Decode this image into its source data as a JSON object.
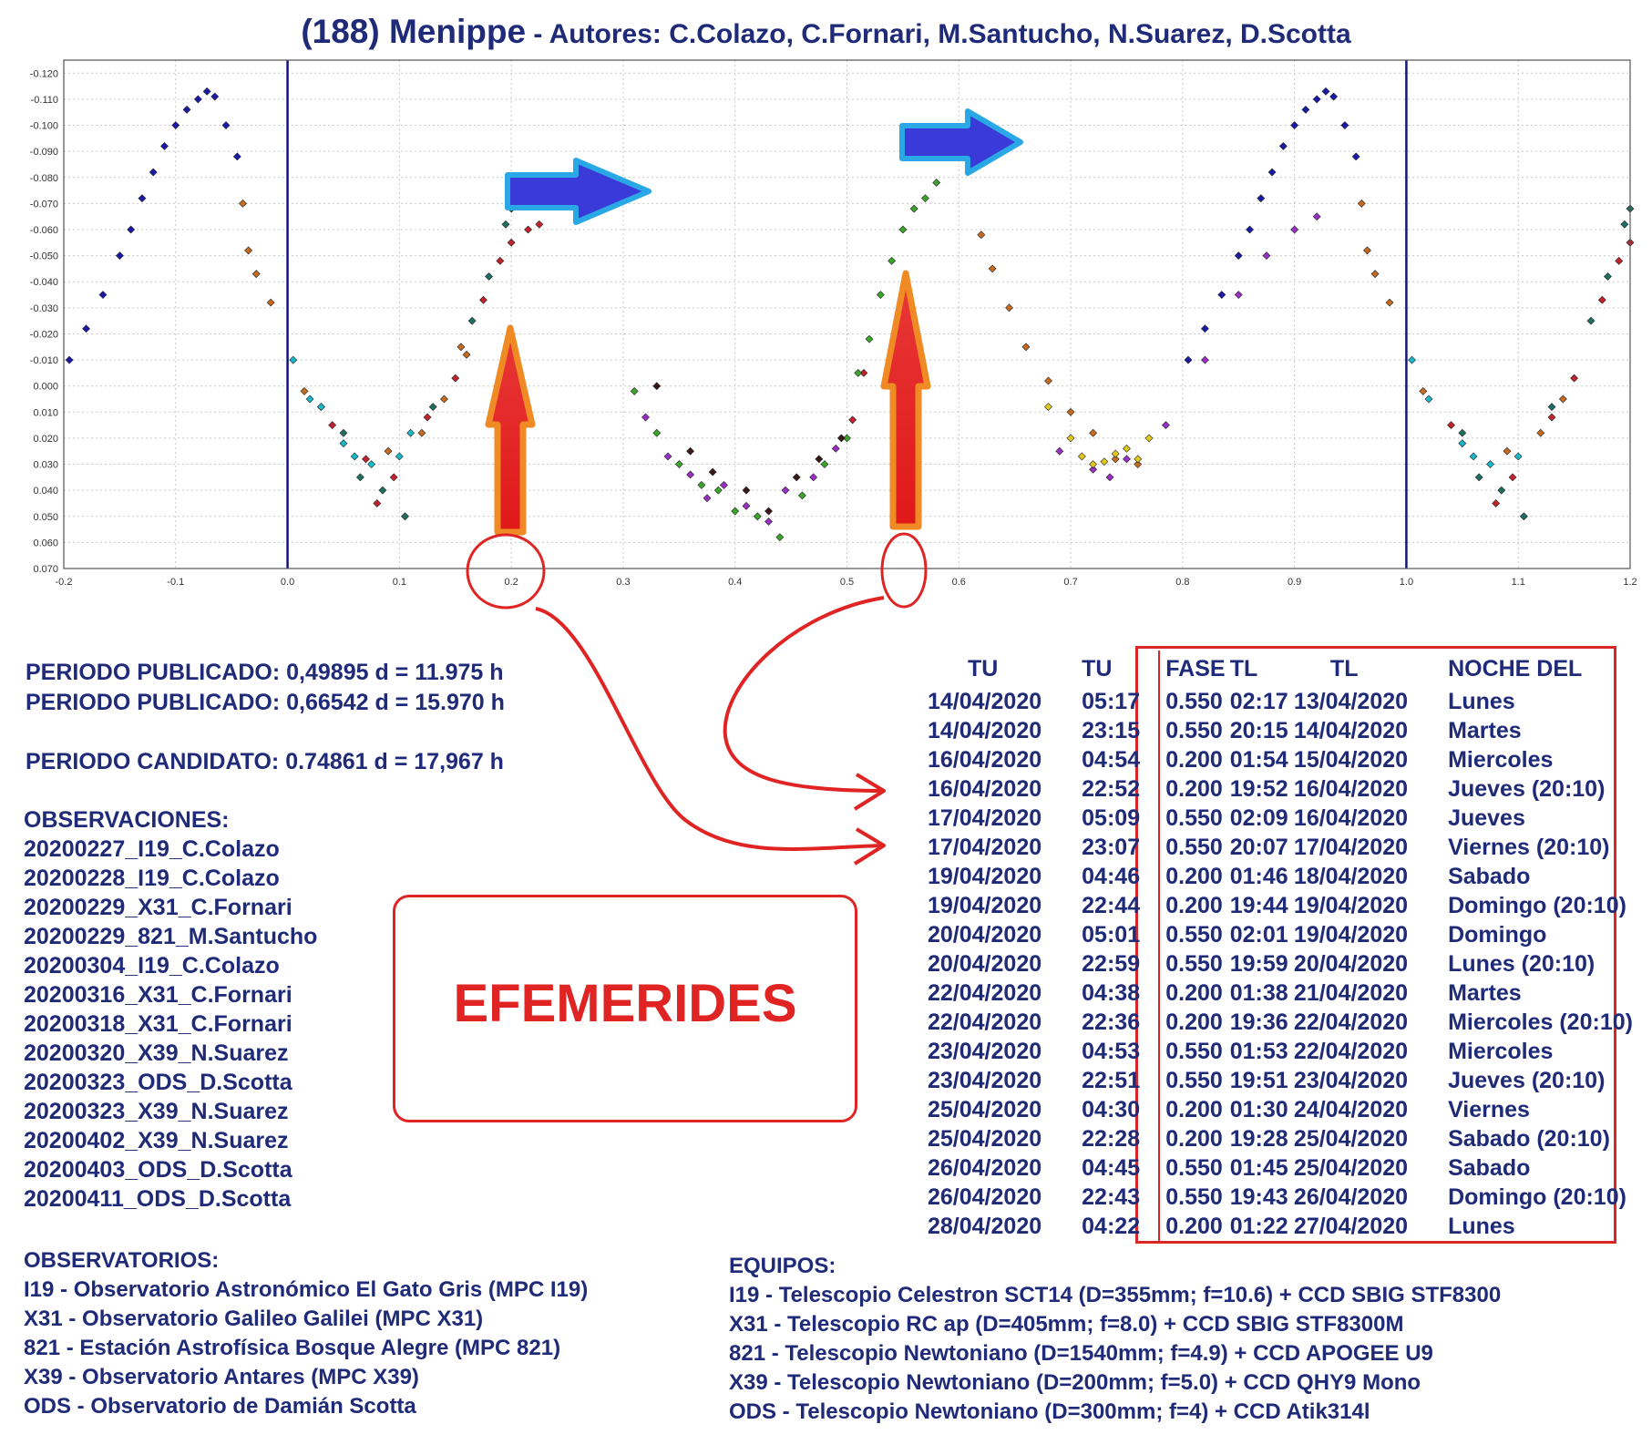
{
  "title": {
    "main": "(188) Menippe",
    "sub": " - Autores: C.Colazo, C.Fornari, M.Santucho, N.Suarez, D.Scotta"
  },
  "chart_data": {
    "type": "scatter",
    "title": "",
    "xlabel": "",
    "ylabel": "",
    "xlim": [
      -0.2,
      1.2
    ],
    "ylim": [
      0.07,
      -0.125
    ],
    "y_inverted": true,
    "grid": true,
    "x_ticks": [
      "-0.2",
      "-0.1",
      "0.0",
      "0.1",
      "0.2",
      "0.3",
      "0.4",
      "0.5",
      "0.6",
      "0.7",
      "0.8",
      "0.9",
      "1.0",
      "1.1",
      "1.2"
    ],
    "y_ticks": [
      "-0.120",
      "-0.110",
      "-0.100",
      "-0.090",
      "-0.080",
      "-0.070",
      "-0.060",
      "-0.050",
      "-0.040",
      "-0.030",
      "-0.020",
      "-0.010",
      "0.000",
      "0.010",
      "0.020",
      "0.030",
      "0.040",
      "0.050",
      "0.060",
      "0.070"
    ],
    "vertical_lines": [
      0.0,
      1.0
    ],
    "highlighted_phases": [
      0.2,
      0.55
    ],
    "series": [
      {
        "color": "#1a1aa8",
        "points": [
          [
            -0.195,
            -0.01
          ],
          [
            -0.18,
            -0.022
          ],
          [
            -0.165,
            -0.035
          ],
          [
            -0.15,
            -0.05
          ],
          [
            -0.14,
            -0.06
          ],
          [
            -0.13,
            -0.072
          ],
          [
            -0.12,
            -0.082
          ],
          [
            -0.11,
            -0.092
          ],
          [
            -0.1,
            -0.1
          ],
          [
            -0.09,
            -0.106
          ],
          [
            -0.08,
            -0.11
          ],
          [
            -0.072,
            -0.113
          ],
          [
            -0.065,
            -0.111
          ],
          [
            -0.055,
            -0.1
          ],
          [
            -0.045,
            -0.088
          ],
          [
            0.805,
            -0.01
          ],
          [
            0.82,
            -0.022
          ],
          [
            0.835,
            -0.035
          ],
          [
            0.85,
            -0.05
          ],
          [
            0.86,
            -0.06
          ],
          [
            0.87,
            -0.072
          ],
          [
            0.88,
            -0.082
          ],
          [
            0.89,
            -0.092
          ],
          [
            0.9,
            -0.1
          ],
          [
            0.91,
            -0.106
          ],
          [
            0.92,
            -0.11
          ],
          [
            0.928,
            -0.113
          ],
          [
            0.935,
            -0.111
          ],
          [
            0.945,
            -0.1
          ],
          [
            0.955,
            -0.088
          ]
        ]
      },
      {
        "color": "#c56a1f",
        "points": [
          [
            -0.04,
            -0.07
          ],
          [
            -0.035,
            -0.052
          ],
          [
            -0.028,
            -0.043
          ],
          [
            -0.015,
            -0.032
          ],
          [
            0.015,
            0.002
          ],
          [
            0.03,
            0.008
          ],
          [
            0.09,
            0.025
          ],
          [
            0.12,
            0.018
          ],
          [
            0.14,
            0.005
          ],
          [
            0.155,
            -0.015
          ],
          [
            0.16,
            -0.012
          ],
          [
            0.62,
            -0.058
          ],
          [
            0.63,
            -0.045
          ],
          [
            0.645,
            -0.03
          ],
          [
            0.66,
            -0.015
          ],
          [
            0.68,
            -0.002
          ],
          [
            0.7,
            0.01
          ],
          [
            0.72,
            0.018
          ],
          [
            0.74,
            0.028
          ],
          [
            0.76,
            0.03
          ],
          [
            0.96,
            -0.07
          ],
          [
            0.965,
            -0.052
          ],
          [
            0.972,
            -0.043
          ],
          [
            0.985,
            -0.032
          ],
          [
            1.015,
            0.002
          ],
          [
            1.09,
            0.025
          ],
          [
            1.12,
            0.018
          ],
          [
            1.14,
            0.005
          ]
        ]
      },
      {
        "color": "#18b8c8",
        "points": [
          [
            0.005,
            -0.01
          ],
          [
            0.02,
            0.005
          ],
          [
            0.03,
            0.008
          ],
          [
            0.05,
            0.022
          ],
          [
            0.06,
            0.027
          ],
          [
            0.075,
            0.03
          ],
          [
            0.1,
            0.027
          ],
          [
            0.11,
            0.018
          ],
          [
            1.005,
            -0.01
          ],
          [
            1.02,
            0.005
          ],
          [
            1.05,
            0.022
          ],
          [
            1.06,
            0.027
          ],
          [
            1.075,
            0.03
          ],
          [
            1.1,
            0.027
          ]
        ]
      },
      {
        "color": "#c0242a",
        "points": [
          [
            0.04,
            0.015
          ],
          [
            0.07,
            0.028
          ],
          [
            0.08,
            0.045
          ],
          [
            0.095,
            0.035
          ],
          [
            0.125,
            0.012
          ],
          [
            0.15,
            -0.003
          ],
          [
            0.175,
            -0.033
          ],
          [
            0.19,
            -0.048
          ],
          [
            0.2,
            -0.055
          ],
          [
            0.215,
            -0.06
          ],
          [
            0.225,
            -0.062
          ],
          [
            0.505,
            0.013
          ],
          [
            0.515,
            -0.005
          ],
          [
            1.04,
            0.015
          ],
          [
            1.08,
            0.045
          ],
          [
            1.095,
            0.035
          ],
          [
            1.13,
            0.012
          ],
          [
            1.15,
            -0.003
          ],
          [
            1.175,
            -0.033
          ],
          [
            1.19,
            -0.048
          ],
          [
            1.2,
            -0.055
          ]
        ]
      },
      {
        "color": "#1f6f60",
        "points": [
          [
            0.05,
            0.018
          ],
          [
            0.065,
            0.035
          ],
          [
            0.085,
            0.04
          ],
          [
            0.105,
            0.05
          ],
          [
            0.13,
            0.008
          ],
          [
            0.165,
            -0.025
          ],
          [
            0.18,
            -0.042
          ],
          [
            0.195,
            -0.062
          ],
          [
            0.2,
            -0.068
          ],
          [
            1.05,
            0.018
          ],
          [
            1.065,
            0.035
          ],
          [
            1.085,
            0.04
          ],
          [
            1.105,
            0.05
          ],
          [
            1.13,
            0.008
          ],
          [
            1.165,
            -0.025
          ],
          [
            1.18,
            -0.042
          ],
          [
            1.195,
            -0.062
          ],
          [
            1.2,
            -0.068
          ]
        ]
      },
      {
        "color": "#3aa52a",
        "points": [
          [
            0.31,
            0.002
          ],
          [
            0.33,
            0.018
          ],
          [
            0.35,
            0.03
          ],
          [
            0.37,
            0.038
          ],
          [
            0.385,
            0.04
          ],
          [
            0.4,
            0.048
          ],
          [
            0.42,
            0.05
          ],
          [
            0.44,
            0.058
          ],
          [
            0.46,
            0.042
          ],
          [
            0.48,
            0.03
          ],
          [
            0.5,
            0.02
          ],
          [
            0.51,
            -0.005
          ],
          [
            0.52,
            -0.018
          ],
          [
            0.53,
            -0.035
          ],
          [
            0.54,
            -0.048
          ],
          [
            0.55,
            -0.06
          ],
          [
            0.56,
            -0.068
          ],
          [
            0.57,
            -0.072
          ],
          [
            0.58,
            -0.078
          ]
        ]
      },
      {
        "color": "#9a2fc4",
        "points": [
          [
            0.32,
            0.012
          ],
          [
            0.34,
            0.027
          ],
          [
            0.36,
            0.034
          ],
          [
            0.375,
            0.043
          ],
          [
            0.39,
            0.038
          ],
          [
            0.41,
            0.046
          ],
          [
            0.43,
            0.052
          ],
          [
            0.445,
            0.04
          ],
          [
            0.47,
            0.035
          ],
          [
            0.49,
            0.024
          ],
          [
            0.69,
            0.025
          ],
          [
            0.72,
            0.032
          ],
          [
            0.735,
            0.035
          ],
          [
            0.75,
            0.028
          ],
          [
            0.785,
            0.015
          ],
          [
            0.82,
            -0.01
          ],
          [
            0.85,
            -0.035
          ],
          [
            0.875,
            -0.05
          ],
          [
            0.9,
            -0.06
          ],
          [
            0.92,
            -0.065
          ]
        ]
      },
      {
        "color": "#3a1818",
        "points": [
          [
            0.33,
            0.0
          ],
          [
            0.36,
            0.025
          ],
          [
            0.38,
            0.033
          ],
          [
            0.41,
            0.04
          ],
          [
            0.43,
            0.048
          ],
          [
            0.455,
            0.035
          ],
          [
            0.475,
            0.028
          ],
          [
            0.495,
            0.02
          ]
        ]
      },
      {
        "color": "#e0c81a",
        "points": [
          [
            0.68,
            0.008
          ],
          [
            0.7,
            0.02
          ],
          [
            0.71,
            0.027
          ],
          [
            0.72,
            0.03
          ],
          [
            0.73,
            0.029
          ],
          [
            0.74,
            0.026
          ],
          [
            0.75,
            0.024
          ],
          [
            0.76,
            0.028
          ],
          [
            0.77,
            0.02
          ]
        ]
      }
    ]
  },
  "periods": {
    "p1_label": "PERIODO PUBLICADO:",
    "p1_value": " 0,49895 d = 11.975 h",
    "p2_label": "PERIODO PUBLICADO:",
    "p2_value": " 0,66542 d = 15.970 h",
    "p3_label": "PERIODO CANDIDATO:",
    "p3_value": " 0.74861 d = 17,967 h"
  },
  "observaciones": {
    "title": "OBSERVACIONES:",
    "items": [
      "20200227_I19_C.Colazo",
      "20200228_I19_C.Colazo",
      "20200229_X31_C.Fornari",
      "20200229_821_M.Santucho",
      "20200304_I19_C.Colazo",
      "20200316_X31_C.Fornari",
      "20200318_X31_C.Fornari",
      "20200320_X39_N.Suarez",
      "20200323_ODS_D.Scotta",
      "20200323_X39_N.Suarez",
      "20200402_X39_N.Suarez",
      "20200403_ODS_D.Scotta",
      "20200411_ODS_D.Scotta"
    ]
  },
  "observatorios": {
    "title": "OBSERVATORIOS:",
    "items": [
      "I19 - Observatorio Astronómico El Gato Gris (MPC I19)",
      "X31 - Observatorio Galileo Galilei (MPC X31)",
      "821 - Estación Astrofísica Bosque Alegre (MPC 821)",
      "X39 - Observatorio Antares (MPC X39)",
      "ODS - Observatorio de Damián Scotta"
    ]
  },
  "equipos": {
    "title": "EQUIPOS:",
    "items": [
      "I19 - Telescopio Celestron SCT14 (D=355mm; f=10.6) + CCD SBIG STF8300",
      "X31 - Telescopio RC ap (D=405mm; f=8.0) + CCD SBIG STF8300M",
      "821 - Telescopio  Newtoniano (D=1540mm; f=4.9) + CCD APOGEE U9",
      "X39 - Telescopio Newtoniano (D=200mm; f=5.0) + CCD QHY9 Mono",
      "ODS - Telescopio Newtoniano (D=300mm; f=4) + CCD Atik314l"
    ]
  },
  "efemerides_label": "EFEMERIDES",
  "ephemeris": {
    "headers": [
      "TU",
      "TU",
      "FASE",
      "TL",
      "TL",
      "NOCHE DEL"
    ],
    "rows": [
      [
        "14/04/2020",
        "05:17",
        "0.550",
        "02:17",
        "13/04/2020",
        "Lunes"
      ],
      [
        "14/04/2020",
        "23:15",
        "0.550",
        "20:15",
        "14/04/2020",
        "Martes"
      ],
      [
        "16/04/2020",
        "04:54",
        "0.200",
        "01:54",
        "15/04/2020",
        "Miercoles"
      ],
      [
        "16/04/2020",
        "22:52",
        "0.200",
        "19:52",
        "16/04/2020",
        "Jueves (20:10)"
      ],
      [
        "17/04/2020",
        "05:09",
        "0.550",
        "02:09",
        "16/04/2020",
        "Jueves"
      ],
      [
        "17/04/2020",
        "23:07",
        "0.550",
        "20:07",
        "17/04/2020",
        "Viernes (20:10)"
      ],
      [
        "19/04/2020",
        "04:46",
        "0.200",
        "01:46",
        "18/04/2020",
        "Sabado"
      ],
      [
        "19/04/2020",
        "22:44",
        "0.200",
        "19:44",
        "19/04/2020",
        "Domingo (20:10)"
      ],
      [
        "20/04/2020",
        "05:01",
        "0.550",
        "02:01",
        "19/04/2020",
        "Domingo"
      ],
      [
        "20/04/2020",
        "22:59",
        "0.550",
        "19:59",
        "20/04/2020",
        "Lunes (20:10)"
      ],
      [
        "22/04/2020",
        "04:38",
        "0.200",
        "01:38",
        "21/04/2020",
        "Martes"
      ],
      [
        "22/04/2020",
        "22:36",
        "0.200",
        "19:36",
        "22/04/2020",
        "Miercoles (20:10)"
      ],
      [
        "23/04/2020",
        "04:53",
        "0.550",
        "01:53",
        "22/04/2020",
        "Miercoles"
      ],
      [
        "23/04/2020",
        "22:51",
        "0.550",
        "19:51",
        "23/04/2020",
        "Jueves (20:10)"
      ],
      [
        "25/04/2020",
        "04:30",
        "0.200",
        "01:30",
        "24/04/2020",
        "Viernes"
      ],
      [
        "25/04/2020",
        "22:28",
        "0.200",
        "19:28",
        "25/04/2020",
        "Sabado (20:10)"
      ],
      [
        "26/04/2020",
        "04:45",
        "0.550",
        "01:45",
        "25/04/2020",
        "Sabado"
      ],
      [
        "26/04/2020",
        "22:43",
        "0.550",
        "19:43",
        "26/04/2020",
        "Domingo (20:10)"
      ],
      [
        "28/04/2020",
        "04:22",
        "0.200",
        "01:22",
        "27/04/2020",
        "Lunes"
      ]
    ]
  },
  "colors": {
    "title": "#1f2a78",
    "annotation_red": "#e02424",
    "arrow_blue": "#3a3ad8",
    "arrow_blue_outline": "#2aa8e6",
    "arrow_orange": "#f08a24",
    "vertical_line": "#141478"
  }
}
